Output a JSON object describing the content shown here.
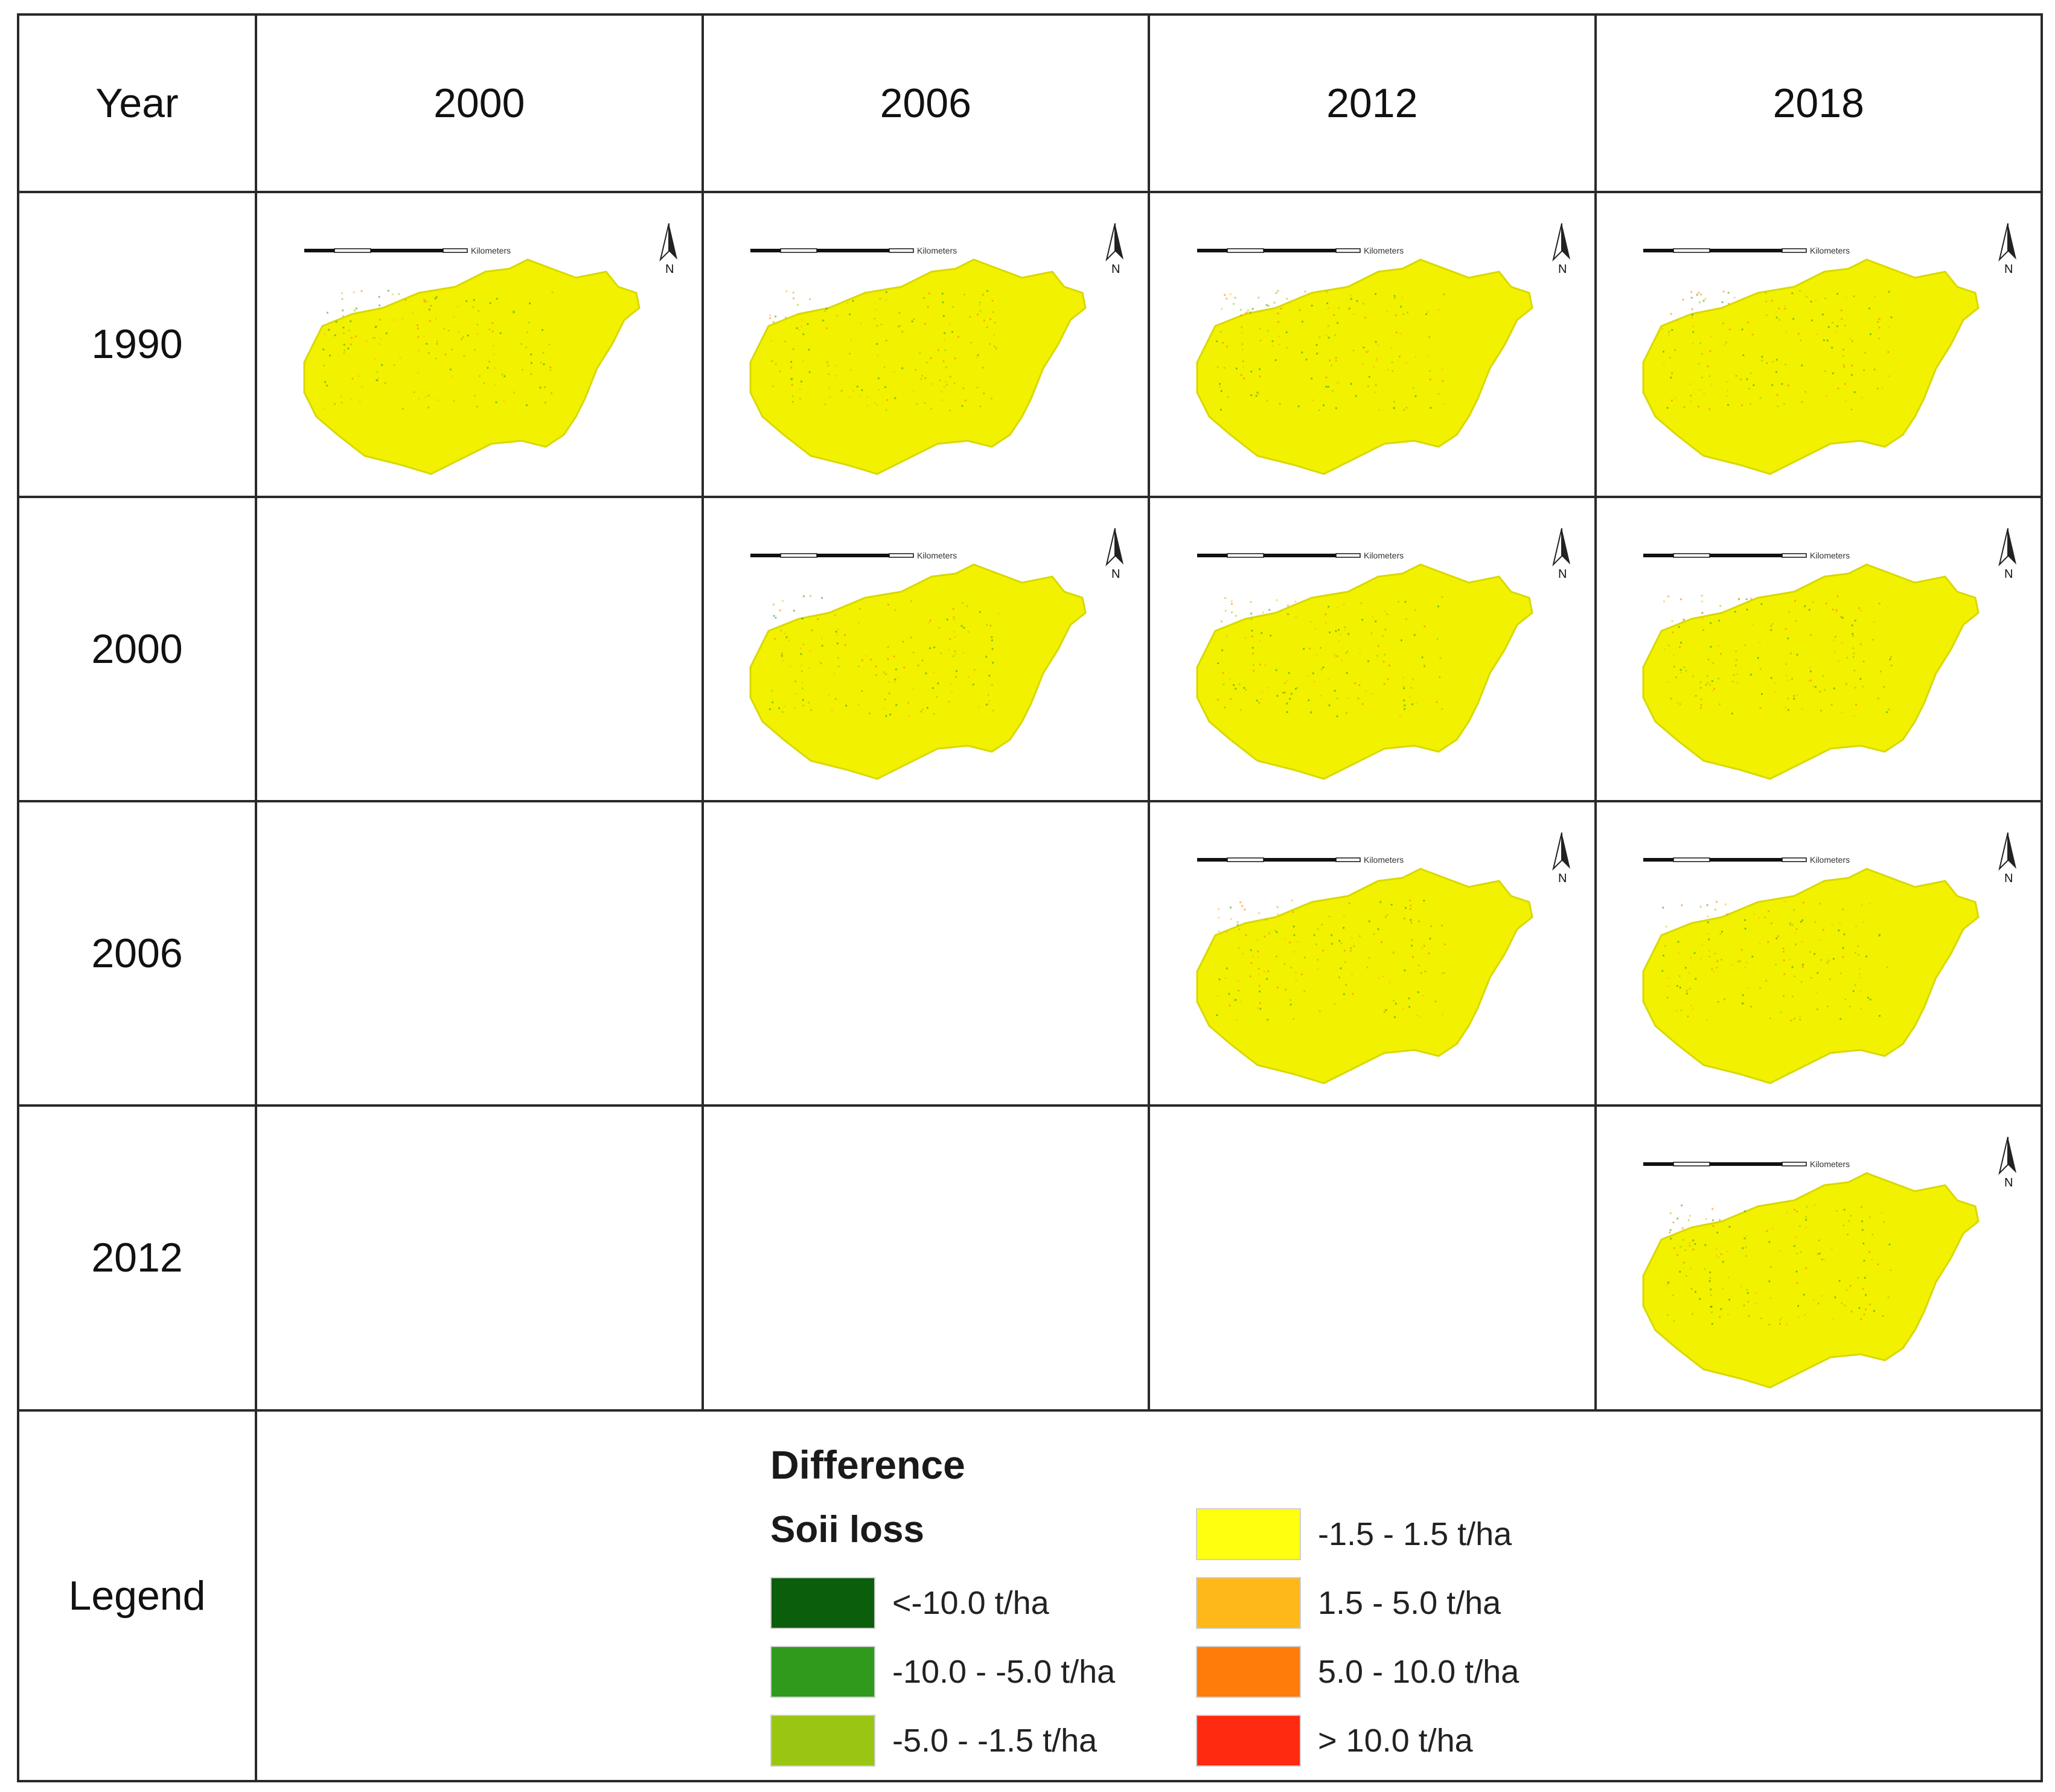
{
  "table": {
    "corner_label": "Year",
    "columns": [
      "2000",
      "2006",
      "2012",
      "2018"
    ],
    "rows": [
      {
        "label": "1990",
        "maps": [
          true,
          true,
          true,
          true
        ]
      },
      {
        "label": "2000",
        "maps": [
          false,
          true,
          true,
          true
        ]
      },
      {
        "label": "2006",
        "maps": [
          false,
          false,
          true,
          true
        ]
      },
      {
        "label": "2012",
        "maps": [
          false,
          false,
          false,
          true
        ]
      }
    ],
    "legend_row_label": "Legend"
  },
  "map": {
    "north_label": "N",
    "scale_unit_label": "Kilometers",
    "base_color": "#f2f200",
    "outline_color": "#d8d800"
  },
  "legend": {
    "title": "Difference",
    "subtitle": "Soii loss",
    "left_items": [
      {
        "label": "<-10.0 t/ha",
        "color": "#0b5e0b"
      },
      {
        "label": "-10.0 - -5.0 t/ha",
        "color": "#2f9a1c"
      },
      {
        "label": "-5.0 - -1.5 t/ha",
        "color": "#9ac513"
      }
    ],
    "right_items": [
      {
        "label": "-1.5 - 1.5 t/ha",
        "color": "#ffff10"
      },
      {
        "label": "1.5 - 5.0 t/ha",
        "color": "#ffb81a"
      },
      {
        "label": "5.0 - 10.0 t/ha",
        "color": "#ff7b0a"
      },
      {
        "label": "> 10.0 t/ha",
        "color": "#ff2a10"
      }
    ]
  }
}
